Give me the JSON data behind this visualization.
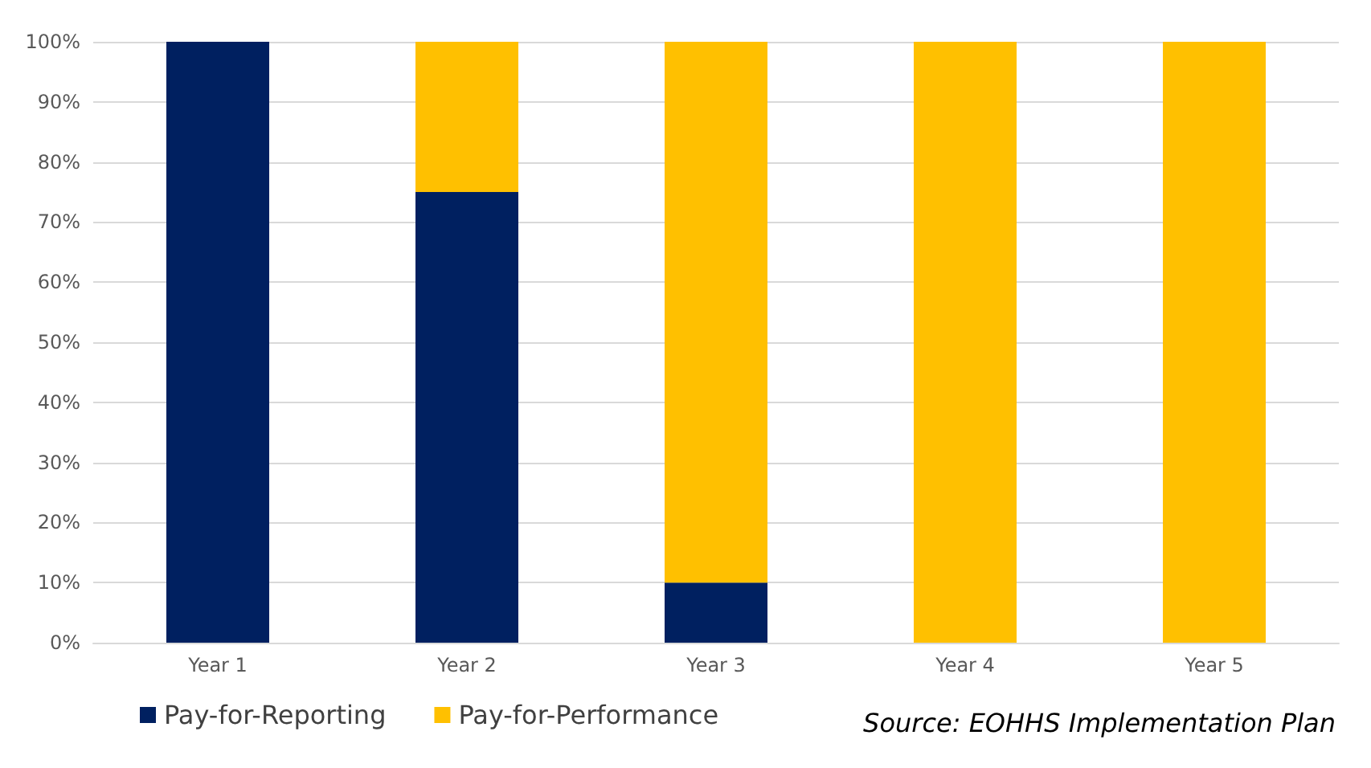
{
  "chart_data": {
    "type": "bar",
    "stacked": true,
    "categories": [
      "Year 1",
      "Year 2",
      "Year 3",
      "Year 4",
      "Year 5"
    ],
    "series": [
      {
        "name": "Pay-for-Reporting",
        "color": "#002060",
        "values": [
          100,
          75,
          10,
          0,
          0
        ]
      },
      {
        "name": "Pay-for-Performance",
        "color": "#ffc000",
        "values": [
          0,
          25,
          90,
          100,
          100
        ]
      }
    ],
    "ylim": [
      0,
      100
    ],
    "yticks": [
      {
        "value": 0,
        "label": "0%"
      },
      {
        "value": 10,
        "label": "10%"
      },
      {
        "value": 20,
        "label": "20%"
      },
      {
        "value": 30,
        "label": "30%"
      },
      {
        "value": 40,
        "label": "40%"
      },
      {
        "value": 50,
        "label": "50%"
      },
      {
        "value": 60,
        "label": "60%"
      },
      {
        "value": 70,
        "label": "70%"
      },
      {
        "value": 80,
        "label": "80%"
      },
      {
        "value": 90,
        "label": "90%"
      },
      {
        "value": 100,
        "label": "100%"
      }
    ],
    "grid": "y",
    "legend": "bottom left",
    "annotations": [
      "Source: EOHHS Implementation Plan"
    ]
  }
}
